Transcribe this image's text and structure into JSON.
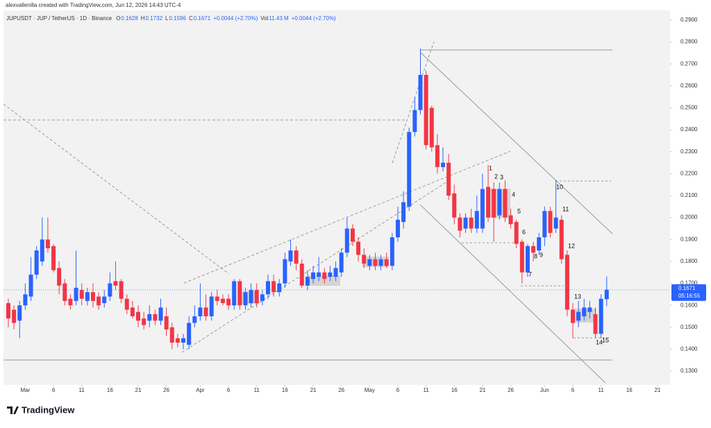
{
  "chart_data": {
    "type": "candlestick",
    "credit": "alexvallenilla created with TradingView.com, Jun 12, 2026 14:43 UTC-4",
    "symbol": "JUPUSDT · JUP / TetherUS · 1D · Binance",
    "legend_items": [
      {
        "label": "O",
        "value": "0.1628"
      },
      {
        "label": "H",
        "value": "0.1732"
      },
      {
        "label": "L",
        "value": "0.1596"
      },
      {
        "label": "C",
        "value": "0.1671"
      },
      {
        "label": "",
        "value": "+0.0044 (+2.70%)"
      },
      {
        "label": "Vol",
        "value": "11.43 M"
      },
      {
        "label": "",
        "value": "+0.0044 (+2.70%)"
      }
    ],
    "logo": "TradingView",
    "x": [
      "Feb 26",
      "Feb 27",
      "Feb 28",
      "Mar 1",
      "Mar 2",
      "Mar 3",
      "Mar 4",
      "Mar 5",
      "Mar 6",
      "Mar 7",
      "Mar 8",
      "Mar 9",
      "Mar 10",
      "Mar 11",
      "Mar 12",
      "Mar 13",
      "Mar 14",
      "Mar 15",
      "Mar 16",
      "Mar 17",
      "Mar 18",
      "Mar 19",
      "Mar 20",
      "Mar 21",
      "Mar 22",
      "Mar 23",
      "Mar 24",
      "Mar 25",
      "Mar 26",
      "Mar 27",
      "Mar 28",
      "Mar 29",
      "Mar 30",
      "Mar 31",
      "Apr 1",
      "Apr 2",
      "Apr 3",
      "Apr 4",
      "Apr 5",
      "Apr 6",
      "Apr 7",
      "Apr 8",
      "Apr 9",
      "Apr 10",
      "Apr 11",
      "Apr 12",
      "Apr 13",
      "Apr 14",
      "Apr 15",
      "Apr 16",
      "Apr 17",
      "Apr 18",
      "Apr 19",
      "Apr 20",
      "Apr 21",
      "Apr 22",
      "Apr 23",
      "Apr 24",
      "Apr 25",
      "Apr 26",
      "Apr 27",
      "Apr 28",
      "Apr 29",
      "Apr 30",
      "May 1",
      "May 2",
      "May 3",
      "May 4",
      "May 5",
      "May 6",
      "May 7",
      "May 8",
      "May 9",
      "May 10",
      "May 11",
      "May 12",
      "May 13",
      "May 14",
      "May 15",
      "May 16",
      "May 17",
      "May 18",
      "May 19",
      "May 20",
      "May 21",
      "May 22",
      "May 23",
      "May 24",
      "May 25",
      "May 26",
      "May 27",
      "May 28",
      "May 29",
      "May 30",
      "May 31",
      "Jun 1",
      "Jun 2",
      "Jun 3",
      "Jun 4",
      "Jun 5",
      "Jun 6",
      "Jun 7",
      "Jun 8",
      "Jun 9",
      "Jun 10",
      "Jun 11",
      "Jun 12"
    ],
    "open": [
      0.161,
      0.158,
      0.153,
      0.16,
      0.164,
      0.174,
      0.18,
      0.19,
      0.187,
      0.177,
      0.17,
      0.163,
      0.162,
      0.167,
      0.162,
      0.166,
      0.164,
      0.161,
      0.164,
      0.171,
      0.171,
      0.163,
      0.159,
      0.157,
      0.154,
      0.153,
      0.156,
      0.153,
      0.155,
      0.15,
      0.145,
      0.143,
      0.142,
      0.152,
      0.155,
      0.159,
      0.155,
      0.164,
      0.163,
      0.163,
      0.16,
      0.171,
      0.16,
      0.161,
      0.167,
      0.162,
      0.165,
      0.171,
      0.166,
      0.17,
      0.18,
      0.185,
      0.179,
      0.169,
      0.172,
      0.173,
      0.175,
      0.173,
      0.173,
      0.175,
      0.184,
      0.195,
      0.189,
      0.183,
      0.178,
      0.181,
      0.178,
      0.181,
      0.178,
      0.191,
      0.198,
      0.205,
      0.239,
      0.249,
      0.265,
      0.25,
      0.233,
      0.223,
      0.225,
      0.211,
      0.2,
      0.195,
      0.2,
      0.195,
      0.195,
      0.214,
      0.213,
      0.201,
      0.213,
      0.201,
      0.198,
      0.189,
      0.175,
      0.187,
      0.185,
      0.191,
      0.203,
      0.195,
      0.199,
      0.183,
      0.158,
      0.153,
      0.155,
      0.157,
      0.156,
      0.147,
      0.1628
    ],
    "high": [
      0.163,
      0.16,
      0.162,
      0.17,
      0.182,
      0.187,
      0.2,
      0.2,
      0.188,
      0.18,
      0.172,
      0.165,
      0.185,
      0.17,
      0.168,
      0.17,
      0.166,
      0.167,
      0.175,
      0.18,
      0.172,
      0.165,
      0.162,
      0.16,
      0.157,
      0.16,
      0.158,
      0.163,
      0.159,
      0.152,
      0.147,
      0.147,
      0.155,
      0.16,
      0.17,
      0.165,
      0.166,
      0.167,
      0.165,
      0.165,
      0.172,
      0.172,
      0.168,
      0.17,
      0.17,
      0.167,
      0.174,
      0.174,
      0.172,
      0.184,
      0.19,
      0.187,
      0.181,
      0.176,
      0.178,
      0.182,
      0.177,
      0.178,
      0.18,
      0.186,
      0.2,
      0.197,
      0.191,
      0.186,
      0.183,
      0.184,
      0.183,
      0.184,
      0.193,
      0.205,
      0.212,
      0.241,
      0.255,
      0.277,
      0.267,
      0.251,
      0.238,
      0.232,
      0.229,
      0.215,
      0.202,
      0.202,
      0.204,
      0.21,
      0.22,
      0.224,
      0.216,
      0.216,
      0.217,
      0.204,
      0.199,
      0.19,
      0.188,
      0.189,
      0.193,
      0.205,
      0.205,
      0.217,
      0.201,
      0.185,
      0.161,
      0.162,
      0.163,
      0.162,
      0.159,
      0.165,
      0.1732
    ],
    "low": [
      0.15,
      0.149,
      0.145,
      0.158,
      0.162,
      0.172,
      0.178,
      0.184,
      0.175,
      0.165,
      0.16,
      0.158,
      0.16,
      0.16,
      0.16,
      0.159,
      0.158,
      0.159,
      0.162,
      0.167,
      0.161,
      0.156,
      0.154,
      0.15,
      0.149,
      0.15,
      0.151,
      0.151,
      0.146,
      0.14,
      0.141,
      0.14,
      0.14,
      0.15,
      0.153,
      0.153,
      0.153,
      0.16,
      0.16,
      0.158,
      0.158,
      0.158,
      0.158,
      0.159,
      0.159,
      0.16,
      0.163,
      0.164,
      0.164,
      0.168,
      0.178,
      0.176,
      0.168,
      0.167,
      0.17,
      0.171,
      0.17,
      0.171,
      0.171,
      0.173,
      0.182,
      0.187,
      0.18,
      0.177,
      0.176,
      0.176,
      0.176,
      0.177,
      0.176,
      0.189,
      0.195,
      0.203,
      0.237,
      0.247,
      0.231,
      0.23,
      0.22,
      0.221,
      0.208,
      0.197,
      0.191,
      0.193,
      0.193,
      0.193,
      0.193,
      0.198,
      0.189,
      0.199,
      0.198,
      0.195,
      0.186,
      0.17,
      0.173,
      0.18,
      0.183,
      0.187,
      0.191,
      0.193,
      0.179,
      0.155,
      0.145,
      0.15,
      0.153,
      0.154,
      0.145,
      0.145,
      0.1596
    ],
    "close": [
      0.154,
      0.152,
      0.16,
      0.165,
      0.174,
      0.185,
      0.19,
      0.186,
      0.176,
      0.169,
      0.162,
      0.16,
      0.168,
      0.163,
      0.166,
      0.162,
      0.16,
      0.164,
      0.17,
      0.169,
      0.163,
      0.158,
      0.155,
      0.153,
      0.151,
      0.156,
      0.153,
      0.159,
      0.149,
      0.143,
      0.143,
      0.145,
      0.152,
      0.155,
      0.159,
      0.155,
      0.164,
      0.162,
      0.161,
      0.16,
      0.171,
      0.16,
      0.166,
      0.167,
      0.161,
      0.165,
      0.171,
      0.166,
      0.17,
      0.181,
      0.185,
      0.179,
      0.169,
      0.173,
      0.175,
      0.175,
      0.172,
      0.175,
      0.177,
      0.184,
      0.195,
      0.189,
      0.183,
      0.179,
      0.181,
      0.178,
      0.181,
      0.178,
      0.191,
      0.199,
      0.207,
      0.239,
      0.249,
      0.265,
      0.233,
      0.232,
      0.223,
      0.225,
      0.21,
      0.2,
      0.194,
      0.2,
      0.195,
      0.203,
      0.213,
      0.2,
      0.2,
      0.213,
      0.2,
      0.197,
      0.188,
      0.175,
      0.187,
      0.184,
      0.191,
      0.203,
      0.193,
      0.2,
      0.181,
      0.158,
      0.152,
      0.157,
      0.159,
      0.159,
      0.147,
      0.163,
      0.1671
    ],
    "up_color": "#2962ff",
    "down_color": "#f23645",
    "last_price": 0.1671,
    "countdown": "05:16:55",
    "ylim": [
      0.1237,
      0.2944
    ],
    "yticks": [
      {
        "value": 0.13,
        "label": "0.1300"
      },
      {
        "value": 0.14,
        "label": "0.1400"
      },
      {
        "value": 0.15,
        "label": "0.1500"
      },
      {
        "value": 0.16,
        "label": "0.1600"
      },
      {
        "value": 0.17,
        "label": "0.1700"
      },
      {
        "value": 0.18,
        "label": "0.1800"
      },
      {
        "value": 0.19,
        "label": "0.1900"
      },
      {
        "value": 0.2,
        "label": "0.2000"
      },
      {
        "value": 0.21,
        "label": "0.2100"
      },
      {
        "value": 0.22,
        "label": "0.2200"
      },
      {
        "value": 0.23,
        "label": "0.2300"
      },
      {
        "value": 0.24,
        "label": "0.2400"
      },
      {
        "value": 0.25,
        "label": "0.2500"
      },
      {
        "value": 0.26,
        "label": "0.2600"
      },
      {
        "value": 0.27,
        "label": "0.2700"
      },
      {
        "value": 0.28,
        "label": "0.2800"
      },
      {
        "value": 0.29,
        "label": "0.2900"
      }
    ],
    "xticks": [
      {
        "value": "Mar 1",
        "label": "Mar"
      },
      {
        "value": "Mar 6",
        "label": "6"
      },
      {
        "value": "Mar 11",
        "label": "11"
      },
      {
        "value": "Mar 16",
        "label": "16"
      },
      {
        "value": "Mar 21",
        "label": "21"
      },
      {
        "value": "Mar 26",
        "label": "26"
      },
      {
        "value": "Apr 1",
        "label": "Apr"
      },
      {
        "value": "Apr 6",
        "label": "6"
      },
      {
        "value": "Apr 11",
        "label": "11"
      },
      {
        "value": "Apr 16",
        "label": "16"
      },
      {
        "value": "Apr 21",
        "label": "21"
      },
      {
        "value": "Apr 26",
        "label": "26"
      },
      {
        "value": "May 1",
        "label": "May"
      },
      {
        "value": "May 6",
        "label": "6"
      },
      {
        "value": "May 11",
        "label": "11"
      },
      {
        "value": "May 16",
        "label": "16"
      },
      {
        "value": "May 21",
        "label": "21"
      },
      {
        "value": "May 26",
        "label": "26"
      },
      {
        "value": "Jun 1",
        "label": "Jun"
      },
      {
        "value": "Jun 6",
        "label": "6"
      },
      {
        "value": "Jun 11",
        "label": "11"
      },
      {
        "value": "Jun 16",
        "label": "16"
      },
      {
        "value": "Jun 21",
        "label": "21"
      }
    ],
    "annotations": [
      "1",
      "2",
      "3",
      "4",
      "5",
      "6",
      "7",
      "8",
      "9",
      "10",
      "11",
      "12",
      "13",
      "14",
      "15"
    ]
  }
}
